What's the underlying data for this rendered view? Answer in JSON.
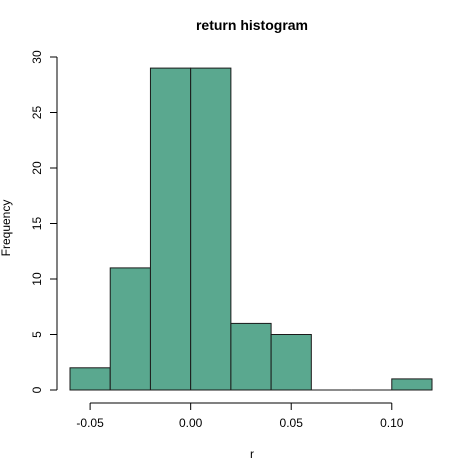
{
  "chart_data": {
    "type": "bar",
    "title": "return histogram",
    "xlabel": "r",
    "ylabel": "Frequency",
    "bin_edges": [
      -0.06,
      -0.04,
      -0.02,
      0.0,
      0.02,
      0.04,
      0.06,
      0.08,
      0.1,
      0.12
    ],
    "values": [
      2,
      11,
      29,
      29,
      6,
      5,
      0,
      0,
      1
    ],
    "xlim": [
      -0.06,
      0.12
    ],
    "ylim": [
      0,
      30
    ],
    "x_ticks": [
      -0.05,
      0.0,
      0.05,
      0.1
    ],
    "x_tick_labels": [
      "-0.05",
      "0.00",
      "0.05",
      "0.10"
    ],
    "y_ticks": [
      0,
      5,
      10,
      15,
      20,
      25,
      30
    ],
    "y_tick_labels": [
      "0",
      "5",
      "10",
      "15",
      "20",
      "25",
      "30"
    ],
    "bar_color": "#5aa88f",
    "grid": false,
    "legend": "none"
  }
}
